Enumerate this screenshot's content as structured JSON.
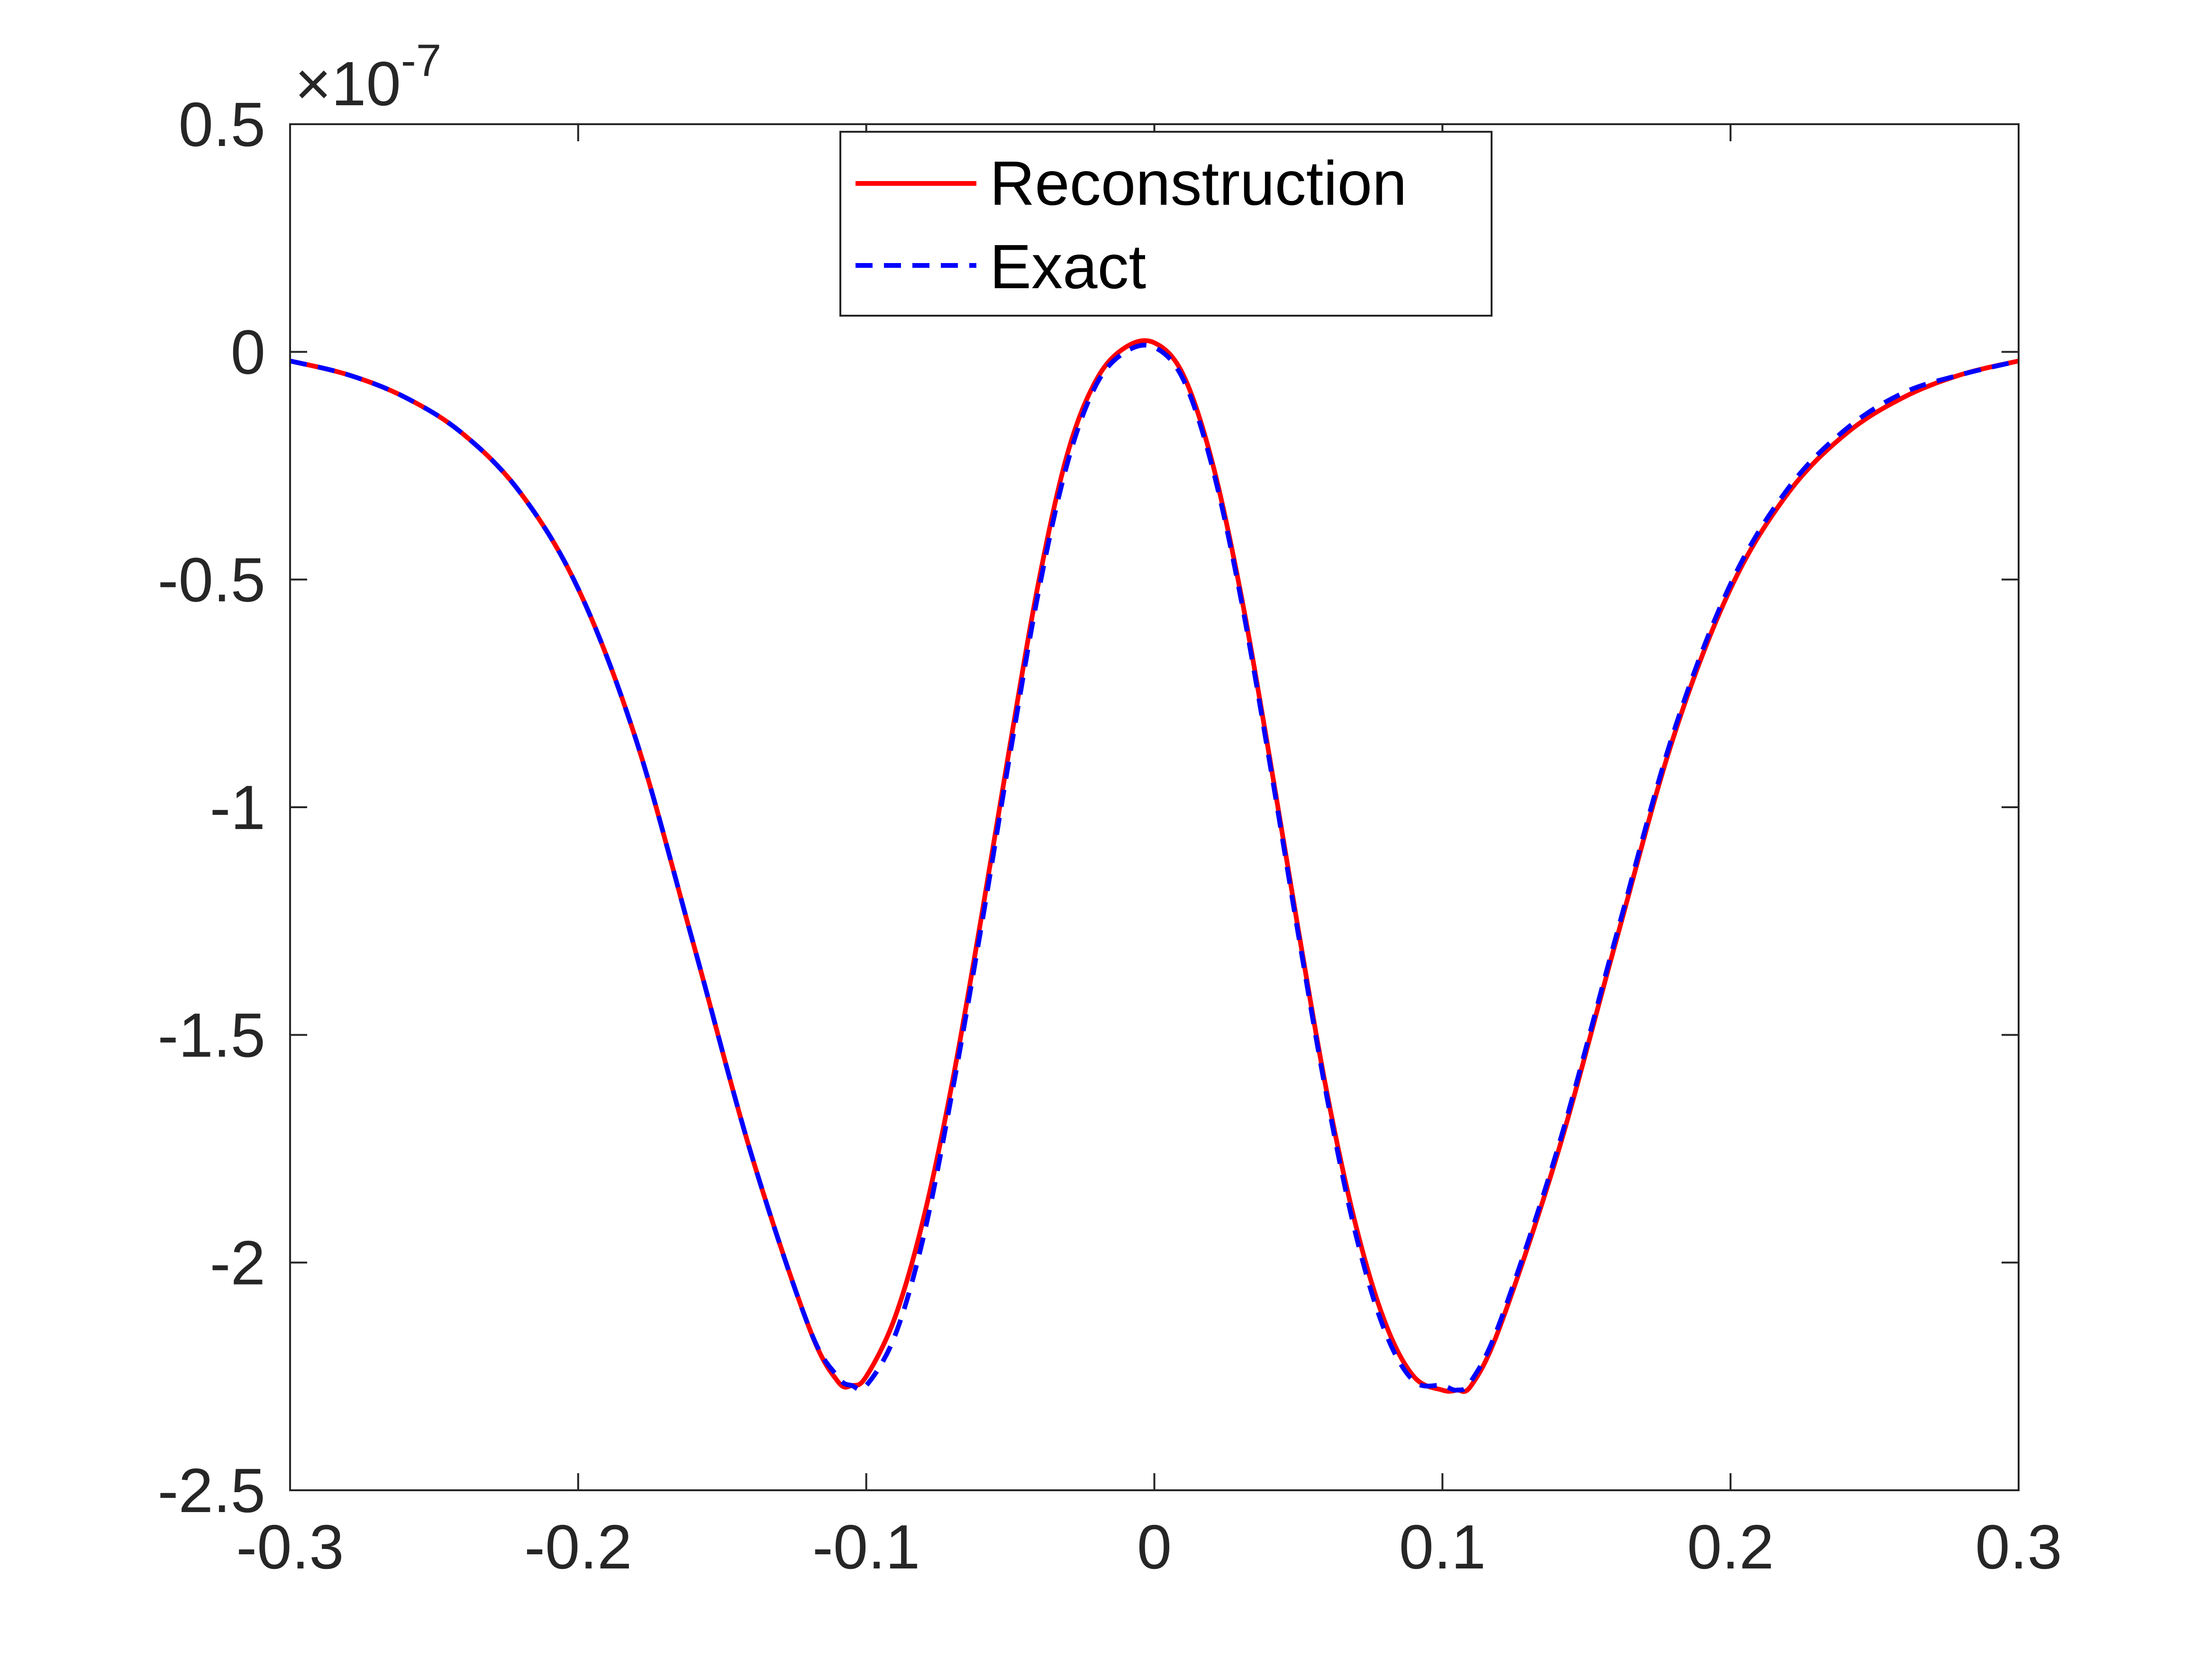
{
  "chart_data": {
    "type": "line",
    "title": "",
    "xlabel": "",
    "ylabel": "",
    "xlim": [
      -0.3,
      0.3
    ],
    "ylim": [
      -2.5,
      0.5
    ],
    "y_exponent_label": "×10",
    "y_exponent_power": "-7",
    "xticks": [
      -0.3,
      -0.2,
      -0.1,
      0,
      0.1,
      0.2,
      0.3
    ],
    "xtick_labels": [
      "-0.3",
      "-0.2",
      "-0.1",
      "0",
      "0.1",
      "0.2",
      "0.3"
    ],
    "yticks": [
      0.5,
      0,
      -0.5,
      -1,
      -1.5,
      -2,
      -2.5
    ],
    "ytick_labels": [
      "0.5",
      "0",
      "-0.5",
      "-1",
      "-1.5",
      "-2",
      "-2.5"
    ],
    "grid": false,
    "legend_position": "top-center",
    "x": [
      -0.3,
      -0.28,
      -0.26,
      -0.24,
      -0.22,
      -0.2,
      -0.18,
      -0.16,
      -0.14,
      -0.12,
      -0.11,
      -0.105,
      -0.1,
      -0.09,
      -0.08,
      -0.07,
      -0.06,
      -0.05,
      -0.04,
      -0.03,
      -0.02,
      -0.01,
      0,
      0.01,
      0.02,
      0.03,
      0.04,
      0.05,
      0.06,
      0.07,
      0.08,
      0.09,
      0.1,
      0.105,
      0.11,
      0.12,
      0.14,
      0.16,
      0.18,
      0.2,
      0.22,
      0.24,
      0.26,
      0.28,
      0.3
    ],
    "series": [
      {
        "name": "Reconstruction",
        "color": "#ff0000",
        "style": "solid",
        "values": [
          -0.02,
          -0.05,
          -0.1,
          -0.18,
          -0.31,
          -0.52,
          -0.85,
          -1.3,
          -1.76,
          -2.14,
          -2.26,
          -2.27,
          -2.25,
          -2.12,
          -1.9,
          -1.6,
          -1.24,
          -0.86,
          -0.5,
          -0.22,
          -0.06,
          0.01,
          0.02,
          -0.05,
          -0.24,
          -0.53,
          -0.89,
          -1.27,
          -1.63,
          -1.92,
          -2.13,
          -2.25,
          -2.28,
          -2.28,
          -2.27,
          -2.14,
          -1.76,
          -1.3,
          -0.85,
          -0.52,
          -0.31,
          -0.18,
          -0.1,
          -0.05,
          -0.02
        ]
      },
      {
        "name": "Exact",
        "color": "#0000ff",
        "style": "dashed",
        "values": [
          -0.02,
          -0.05,
          -0.1,
          -0.18,
          -0.31,
          -0.52,
          -0.85,
          -1.3,
          -1.76,
          -2.14,
          -2.25,
          -2.27,
          -2.27,
          -2.16,
          -1.94,
          -1.62,
          -1.26,
          -0.88,
          -0.52,
          -0.24,
          -0.07,
          0.0,
          0.01,
          -0.06,
          -0.25,
          -0.54,
          -0.9,
          -1.28,
          -1.64,
          -1.94,
          -2.15,
          -2.26,
          -2.27,
          -2.28,
          -2.26,
          -2.13,
          -1.75,
          -1.29,
          -0.84,
          -0.51,
          -0.3,
          -0.17,
          -0.09,
          -0.05,
          -0.02
        ]
      }
    ]
  }
}
